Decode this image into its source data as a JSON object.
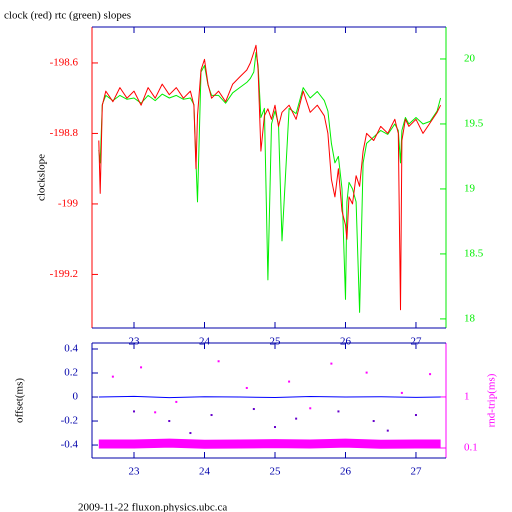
{
  "chart_data": [
    {
      "type": "line",
      "title": "clock (red) rtc (green) slopes",
      "ylabel": "clockslope",
      "xlim": [
        22.404,
        27.426
      ],
      "xticks": [
        23,
        24,
        25,
        26,
        27
      ],
      "ylim": [
        -199.352,
        -198.498
      ],
      "yticks": [
        -198.6,
        -198.8,
        -199,
        -199.2
      ],
      "y2lim": [
        17.93,
        20.246
      ],
      "y2ticks": [
        20,
        19.5,
        19,
        18.5,
        18
      ],
      "tick_color": "#0000aa",
      "y_color": "#ff0000",
      "y2_color": "#00ee00",
      "series": [
        {
          "color": "#00ee00",
          "axis": "y2",
          "mode": "line",
          "x": [
            22.5,
            22.52,
            22.55,
            22.6,
            22.7,
            22.8,
            22.9,
            23.0,
            23.1,
            23.2,
            23.3,
            23.4,
            23.5,
            23.6,
            23.7,
            23.8,
            23.85,
            23.88,
            23.9,
            23.95,
            24.0,
            24.05,
            24.1,
            24.2,
            24.3,
            24.4,
            24.5,
            24.6,
            24.65,
            24.7,
            24.73,
            24.76,
            24.8,
            24.85,
            24.9,
            24.95,
            25.0,
            25.05,
            25.1,
            25.2,
            25.3,
            25.4,
            25.5,
            25.6,
            25.7,
            25.75,
            25.8,
            25.85,
            25.9,
            25.95,
            26.0,
            26.02,
            26.05,
            26.1,
            26.15,
            26.2,
            26.25,
            26.3,
            26.4,
            26.5,
            26.6,
            26.7,
            26.75,
            26.78,
            26.8,
            26.85,
            26.9,
            27.0,
            27.1,
            27.2,
            27.3,
            27.35
          ],
          "values": [
            19.3,
            19.2,
            19.65,
            19.72,
            19.68,
            19.72,
            19.69,
            19.7,
            19.66,
            19.72,
            19.68,
            19.73,
            19.7,
            19.72,
            19.69,
            19.7,
            19.65,
            19.2,
            18.9,
            19.9,
            19.95,
            19.8,
            19.72,
            19.72,
            19.66,
            19.74,
            19.78,
            19.82,
            19.85,
            19.9,
            20.05,
            19.95,
            19.55,
            19.62,
            18.3,
            19.5,
            19.6,
            19.5,
            18.6,
            19.62,
            19.58,
            19.78,
            19.7,
            19.75,
            19.68,
            19.6,
            19.35,
            19.2,
            19.25,
            19.0,
            18.15,
            18.9,
            19.05,
            19.0,
            18.9,
            18.05,
            19.2,
            19.35,
            19.4,
            19.45,
            19.42,
            19.5,
            19.45,
            19.2,
            19.45,
            19.55,
            19.5,
            19.55,
            19.5,
            19.52,
            19.6,
            19.7
          ]
        },
        {
          "color": "#ff0000",
          "axis": "y",
          "mode": "line",
          "x": [
            22.5,
            22.52,
            22.55,
            22.6,
            22.7,
            22.8,
            22.9,
            23.0,
            23.1,
            23.2,
            23.3,
            23.4,
            23.5,
            23.6,
            23.7,
            23.8,
            23.85,
            23.88,
            23.9,
            23.95,
            24.0,
            24.05,
            24.1,
            24.2,
            24.3,
            24.4,
            24.5,
            24.6,
            24.65,
            24.7,
            24.73,
            24.76,
            24.8,
            24.85,
            24.9,
            24.95,
            25.0,
            25.05,
            25.1,
            25.2,
            25.3,
            25.4,
            25.5,
            25.6,
            25.7,
            25.75,
            25.8,
            25.85,
            25.9,
            25.95,
            26.0,
            26.02,
            26.05,
            26.1,
            26.15,
            26.2,
            26.25,
            26.3,
            26.4,
            26.5,
            26.6,
            26.7,
            26.75,
            26.78,
            26.8,
            26.85,
            26.9,
            27.0,
            27.1,
            27.2,
            27.3,
            27.35
          ],
          "values": [
            -198.82,
            -198.97,
            -198.72,
            -198.68,
            -198.71,
            -198.67,
            -198.7,
            -198.68,
            -198.72,
            -198.67,
            -198.7,
            -198.66,
            -198.69,
            -198.67,
            -198.7,
            -198.68,
            -198.72,
            -198.9,
            -198.75,
            -198.62,
            -198.59,
            -198.66,
            -198.7,
            -198.68,
            -198.71,
            -198.66,
            -198.64,
            -198.62,
            -198.6,
            -198.57,
            -198.55,
            -198.62,
            -198.85,
            -198.75,
            -198.73,
            -198.76,
            -198.72,
            -198.78,
            -198.74,
            -198.72,
            -198.76,
            -198.68,
            -198.74,
            -198.72,
            -198.75,
            -198.8,
            -198.93,
            -198.98,
            -198.9,
            -199.02,
            -199.06,
            -199.1,
            -198.98,
            -199.0,
            -198.92,
            -198.95,
            -198.85,
            -198.8,
            -198.82,
            -198.78,
            -198.8,
            -198.76,
            -198.8,
            -199.3,
            -198.82,
            -198.76,
            -198.78,
            -198.76,
            -198.8,
            -198.77,
            -198.74,
            -198.72
          ]
        }
      ]
    },
    {
      "type": "line",
      "ylabel": "offset(ms)",
      "y2label": "rnd-trip(ms)",
      "xlim": [
        22.404,
        27.426
      ],
      "xticks": [
        23,
        24,
        25,
        26,
        27
      ],
      "ylim": [
        -0.508,
        0.45
      ],
      "yticks": [
        0.4,
        0.2,
        0,
        -0.2,
        -0.4
      ],
      "y2lim": [
        0.0637,
        11.4
      ],
      "y2ticks": [
        1,
        0.1
      ],
      "y2log": true,
      "tick_color": "#0000aa",
      "y_color": "#0000aa",
      "y2_color": "#ff00ff",
      "series": [
        {
          "color": "#ff00ff",
          "axis": "y2",
          "mode": "band",
          "x": [
            22.5,
            23,
            23.5,
            24,
            24.5,
            25,
            25.5,
            26,
            26.5,
            27,
            27.35
          ],
          "values": [
            0.12,
            0.12,
            0.125,
            0.118,
            0.12,
            0.122,
            0.12,
            0.125,
            0.118,
            0.12,
            0.12
          ]
        },
        {
          "color": "#ff00ff",
          "axis": "y2",
          "mode": "points",
          "x": [
            22.7,
            23.1,
            23.6,
            24.2,
            24.6,
            25.2,
            25.8,
            26.3,
            26.8,
            27.2,
            23.3,
            25.5
          ],
          "values": [
            2.5,
            3.8,
            0.8,
            5,
            1.5,
            2,
            4.5,
            3,
            1.2,
            2.8,
            0.5,
            0.6
          ]
        },
        {
          "color": "#6600cc",
          "axis": "y",
          "mode": "points",
          "x": [
            23.0,
            23.5,
            24.1,
            24.7,
            25.3,
            25.9,
            26.4,
            27.0,
            23.8,
            25.0,
            26.6
          ],
          "values": [
            -0.12,
            -0.2,
            -0.15,
            -0.1,
            -0.18,
            -0.12,
            -0.2,
            -0.15,
            -0.3,
            -0.25,
            -0.28
          ]
        },
        {
          "color": "#0000ff",
          "axis": "y",
          "mode": "line",
          "x": [
            22.5,
            23,
            23.5,
            24,
            24.5,
            25,
            25.5,
            26,
            26.5,
            27,
            27.35
          ],
          "values": [
            0,
            0.005,
            -0.005,
            0.003,
            0,
            -0.004,
            0.004,
            0,
            0.003,
            -0.003,
            0
          ]
        }
      ]
    }
  ],
  "footer": "2009-11-22 fluxon.physics.ubc.ca"
}
